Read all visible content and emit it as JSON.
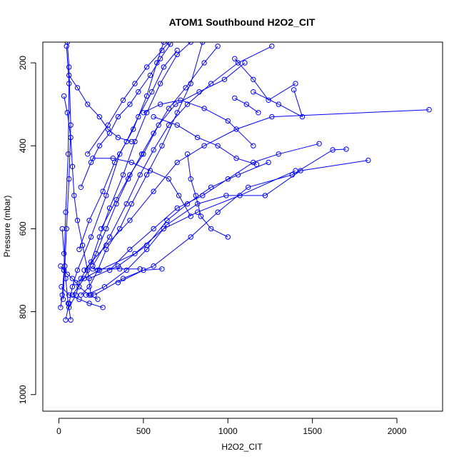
{
  "chart_data": {
    "type": "scatter",
    "title": "ATOM1 Southbound H2O2_CIT",
    "xlabel": "H2O2_CIT",
    "ylabel": "Pressure (mbar)",
    "xlim": [
      -95,
      2270
    ],
    "ylim": [
      1040,
      150
    ],
    "y_reversed": true,
    "x_ticks": [
      0,
      500,
      1000,
      1500,
      2000
    ],
    "y_ticks": [
      200,
      400,
      600,
      800,
      1000
    ],
    "grid": false,
    "legend": "none",
    "series_color": "#0000ff",
    "series": [
      {
        "values": [
          [
            10,
            790
          ],
          [
            20,
            760
          ],
          [
            30,
            700
          ],
          [
            40,
            560
          ],
          [
            55,
            420
          ],
          [
            60,
            250
          ],
          [
            45,
            160
          ]
        ]
      },
      {
        "values": [
          [
            25,
            770
          ],
          [
            35,
            690
          ],
          [
            45,
            600
          ],
          [
            60,
            480
          ],
          [
            70,
            350
          ],
          [
            60,
            210
          ],
          [
            50,
            150
          ]
        ]
      },
      {
        "values": [
          [
            40,
            820
          ],
          [
            60,
            780
          ],
          [
            80,
            740
          ],
          [
            110,
            700
          ],
          [
            190,
            620
          ],
          [
            280,
            520
          ],
          [
            360,
            420
          ],
          [
            440,
            360
          ],
          [
            520,
            280
          ],
          [
            580,
            200
          ],
          [
            620,
            150
          ]
        ]
      },
      {
        "values": [
          [
            60,
            790
          ],
          [
            100,
            760
          ],
          [
            130,
            720
          ],
          [
            190,
            680
          ],
          [
            240,
            620
          ],
          [
            300,
            550
          ],
          [
            380,
            470
          ],
          [
            450,
            390
          ],
          [
            520,
            320
          ],
          [
            600,
            250
          ],
          [
            700,
            180
          ],
          [
            780,
            150
          ]
        ]
      },
      {
        "values": [
          [
            130,
            760
          ],
          [
            180,
            740
          ],
          [
            230,
            700
          ],
          [
            280,
            650
          ],
          [
            360,
            600
          ],
          [
            430,
            540
          ],
          [
            520,
            470
          ],
          [
            610,
            400
          ],
          [
            700,
            320
          ],
          [
            780,
            250
          ],
          [
            850,
            150
          ]
        ]
      },
      {
        "values": [
          [
            160,
            760
          ],
          [
            270,
            740
          ],
          [
            400,
            700
          ],
          [
            520,
            650
          ],
          [
            640,
            590
          ],
          [
            820,
            540
          ],
          [
            990,
            520
          ],
          [
            1220,
            520
          ],
          [
            1430,
            460
          ],
          [
            1830,
            435
          ]
        ]
      },
      {
        "values": [
          [
            210,
            760
          ],
          [
            380,
            720
          ],
          [
            560,
            690
          ],
          [
            780,
            620
          ],
          [
            940,
            560
          ],
          [
            1120,
            500
          ],
          [
            1380,
            470
          ],
          [
            1620,
            410
          ],
          [
            1700,
            408
          ]
        ]
      },
      {
        "values": [
          [
            100,
            730
          ],
          [
            240,
            700
          ],
          [
            450,
            660
          ],
          [
            620,
            600
          ],
          [
            820,
            560
          ],
          [
            1070,
            520
          ],
          [
            1400,
            460
          ]
        ]
      },
      {
        "values": [
          [
            150,
            700
          ],
          [
            280,
            640
          ],
          [
            420,
            580
          ],
          [
            560,
            510
          ],
          [
            700,
            440
          ],
          [
            860,
            400
          ],
          [
            1050,
            360
          ],
          [
            1260,
            330
          ],
          [
            2190,
            313
          ]
        ]
      },
      {
        "values": [
          [
            200,
            690
          ],
          [
            300,
            620
          ],
          [
            400,
            540
          ],
          [
            480,
            470
          ],
          [
            560,
            410
          ],
          [
            650,
            350
          ],
          [
            760,
            300
          ],
          [
            900,
            250
          ],
          [
            1060,
            200
          ],
          [
            1260,
            160
          ]
        ]
      },
      {
        "values": [
          [
            120,
            650
          ],
          [
            180,
            580
          ],
          [
            260,
            510
          ],
          [
            330,
            440
          ],
          [
            400,
            390
          ],
          [
            470,
            330
          ],
          [
            550,
            270
          ],
          [
            620,
            210
          ],
          [
            700,
            170
          ]
        ]
      },
      {
        "values": [
          [
            250,
            600
          ],
          [
            340,
            530
          ],
          [
            420,
            470
          ],
          [
            500,
            420
          ],
          [
            590,
            350
          ],
          [
            690,
            300
          ],
          [
            830,
            270
          ],
          [
            980,
            240
          ],
          [
            1100,
            200
          ]
        ]
      },
      {
        "values": [
          [
            300,
            700
          ],
          [
            420,
            650
          ],
          [
            560,
            600
          ],
          [
            700,
            550
          ],
          [
            850,
            520
          ],
          [
            1000,
            480
          ],
          [
            1150,
            440
          ],
          [
            1300,
            420
          ],
          [
            1540,
            395
          ]
        ]
      },
      {
        "values": [
          [
            180,
            720
          ],
          [
            350,
            690
          ],
          [
            520,
            640
          ],
          [
            640,
            580
          ],
          [
            760,
            540
          ],
          [
            900,
            500
          ],
          [
            1060,
            470
          ],
          [
            1240,
            440
          ]
        ]
      },
      {
        "values": [
          [
            80,
            760
          ],
          [
            150,
            720
          ],
          [
            220,
            660
          ],
          [
            280,
            600
          ],
          [
            340,
            540
          ],
          [
            410,
            480
          ],
          [
            490,
            420
          ],
          [
            560,
            370
          ],
          [
            650,
            310
          ],
          [
            750,
            260
          ],
          [
            860,
            200
          ],
          [
            940,
            160
          ]
        ]
      },
      {
        "values": [
          [
            350,
            730
          ],
          [
            500,
            700
          ],
          [
            610,
            697
          ]
        ]
      },
      {
        "values": [
          [
            480,
            697
          ],
          [
            360,
            697
          ],
          [
            200,
            697
          ]
        ]
      },
      {
        "values": [
          [
            170,
            420
          ],
          [
            290,
            350
          ],
          [
            380,
            290
          ],
          [
            450,
            250
          ],
          [
            520,
            210
          ],
          [
            610,
            170
          ],
          [
            650,
            150
          ]
        ]
      },
      {
        "values": [
          [
            130,
            500
          ],
          [
            190,
            440
          ],
          [
            240,
            400
          ],
          [
            300,
            370
          ],
          [
            350,
            330
          ],
          [
            420,
            300
          ],
          [
            470,
            270
          ],
          [
            540,
            230
          ],
          [
            600,
            190
          ],
          [
            660,
            155
          ]
        ]
      },
      {
        "values": [
          [
            1040,
            190
          ],
          [
            1150,
            240
          ],
          [
            1240,
            290
          ],
          [
            1400,
            250
          ]
        ]
      },
      {
        "values": [
          [
            1150,
            270
          ],
          [
            1300,
            300
          ],
          [
            1440,
            330
          ],
          [
            1390,
            265
          ]
        ]
      },
      {
        "values": [
          [
            1040,
            285
          ],
          [
            1110,
            300
          ],
          [
            1180,
            320
          ]
        ]
      },
      {
        "values": [
          [
            1150,
            400
          ],
          [
            1000,
            340
          ],
          [
            860,
            310
          ],
          [
            720,
            290
          ],
          [
            600,
            300
          ],
          [
            500,
            320
          ]
        ]
      },
      {
        "values": [
          [
            1170,
            445
          ],
          [
            1050,
            430
          ],
          [
            940,
            400
          ],
          [
            820,
            380
          ],
          [
            700,
            350
          ],
          [
            560,
            330
          ]
        ]
      },
      {
        "values": [
          [
            780,
            570
          ],
          [
            710,
            520
          ],
          [
            650,
            480
          ],
          [
            540,
            460
          ],
          [
            430,
            440
          ],
          [
            320,
            430
          ],
          [
            200,
            430
          ]
        ]
      },
      {
        "values": [
          [
            760,
            420
          ],
          [
            780,
            480
          ],
          [
            810,
            520
          ],
          [
            840,
            570
          ],
          [
            900,
            600
          ],
          [
            1000,
            620
          ]
        ]
      },
      {
        "values": [
          [
            60,
            230
          ],
          [
            110,
            260
          ],
          [
            170,
            300
          ],
          [
            240,
            330
          ],
          [
            290,
            360
          ],
          [
            350,
            380
          ],
          [
            430,
            390
          ]
        ]
      },
      {
        "values": [
          [
            30,
            280
          ],
          [
            50,
            320
          ],
          [
            70,
            380
          ],
          [
            80,
            450
          ],
          [
            90,
            520
          ],
          [
            110,
            580
          ],
          [
            140,
            640
          ],
          [
            170,
            700
          ],
          [
            190,
            760
          ]
        ]
      },
      {
        "values": [
          [
            20,
            600
          ],
          [
            30,
            660
          ],
          [
            40,
            720
          ],
          [
            55,
            780
          ],
          [
            70,
            820
          ]
        ]
      },
      {
        "values": [
          [
            10,
            690
          ],
          [
            30,
            700
          ],
          [
            50,
            710
          ],
          [
            80,
            720
          ],
          [
            120,
            740
          ],
          [
            180,
            760
          ],
          [
            230,
            770
          ]
        ]
      },
      {
        "values": [
          [
            15,
            740
          ],
          [
            60,
            760
          ],
          [
            120,
            770
          ],
          [
            180,
            780
          ],
          [
            260,
            790
          ]
        ]
      }
    ]
  }
}
